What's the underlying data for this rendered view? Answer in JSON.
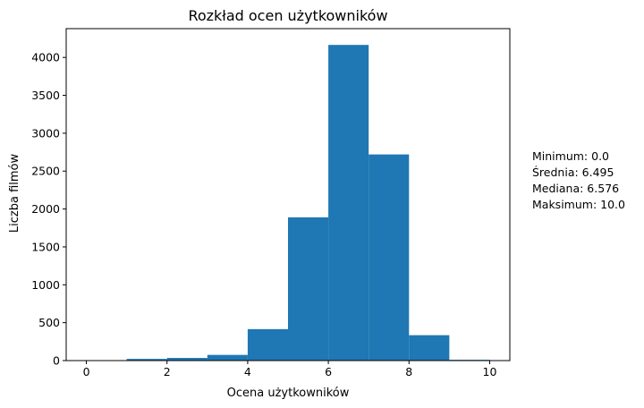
{
  "chart_data": {
    "type": "bar",
    "title": "Rozkład ocen użytkowników",
    "xlabel": "Ocena użytkowników",
    "ylabel": "Liczba filmów",
    "bins": [
      [
        0,
        1
      ],
      [
        1,
        2
      ],
      [
        2,
        3
      ],
      [
        3,
        4
      ],
      [
        4,
        5
      ],
      [
        5,
        6
      ],
      [
        6,
        7
      ],
      [
        7,
        8
      ],
      [
        8,
        9
      ],
      [
        9,
        10
      ]
    ],
    "values": [
      2,
      22,
      35,
      75,
      415,
      1890,
      4165,
      2720,
      335,
      10
    ],
    "xlim": [
      -0.5,
      10.5
    ],
    "ylim": [
      0,
      4380
    ],
    "xticks": [
      0,
      2,
      4,
      6,
      8,
      10
    ],
    "yticks": [
      0,
      500,
      1000,
      1500,
      2000,
      2500,
      3000,
      3500,
      4000
    ],
    "bar_color": "#1f77b4",
    "grid": false,
    "legend": "none"
  },
  "stats": [
    "Minimum: 0.0",
    "Średnia: 6.495",
    "Mediana: 6.576",
    "Maksimum: 10.0"
  ]
}
